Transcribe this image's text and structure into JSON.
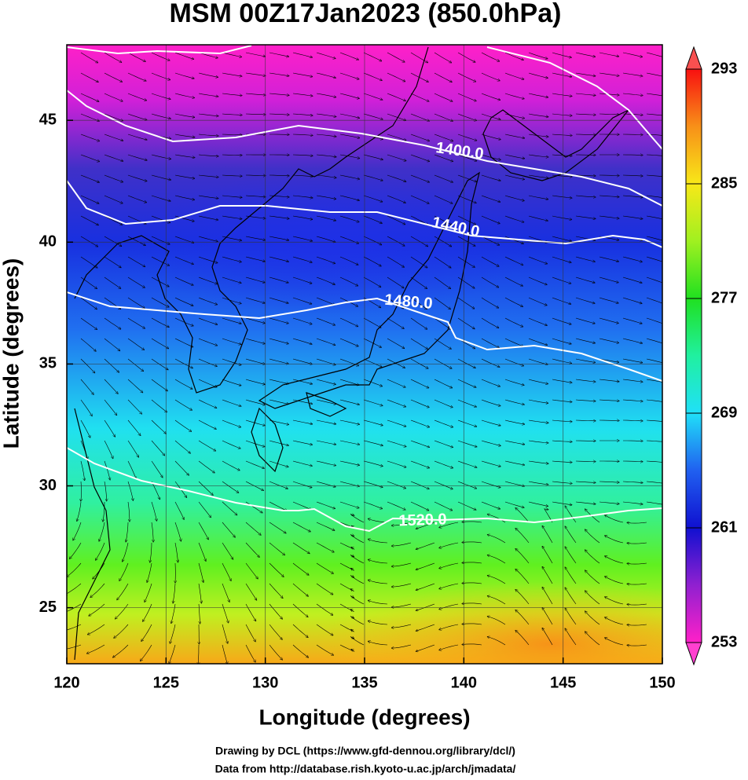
{
  "title": "MSM 00Z17Jan2023 (850.0hPa)",
  "footer": [
    "Drawing by DCL (https://www.gfd-dennou.org/library/dcl/)",
    "Data from http://database.rish.kyoto-u.ac.jp/arch/jmadata/"
  ],
  "chart_data": {
    "type": "map",
    "xlabel": "Longitude (degrees)",
    "ylabel": "Latitude  (degrees)",
    "xlim": [
      120,
      150
    ],
    "xticks": [
      120,
      125,
      130,
      135,
      140,
      145,
      150
    ],
    "ylim": [
      22.7,
      48.1
    ],
    "yticks": [
      25,
      30,
      35,
      40,
      45
    ],
    "grid": true,
    "colorbar": {
      "lim": [
        253,
        293
      ],
      "ticks": [
        253,
        261,
        269,
        277,
        285,
        293
      ]
    },
    "contour_labels": [
      "1400.0",
      "1440.0",
      "1480.0",
      "1520.0"
    ]
  }
}
